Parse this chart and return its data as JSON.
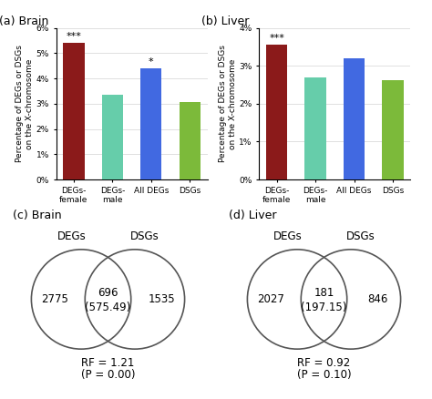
{
  "brain_bar": {
    "categories": [
      "DEGs-\nfemale",
      "DEGs-\nmale",
      "All DEGs",
      "DSGs"
    ],
    "values": [
      5.4,
      3.35,
      4.4,
      3.05
    ],
    "colors": [
      "#8B1A1A",
      "#66CDAA",
      "#4169E1",
      "#7CBA3A"
    ],
    "annotations": [
      "***",
      "",
      "*",
      ""
    ],
    "ylim": [
      0,
      6
    ],
    "yticks": [
      0,
      1,
      2,
      3,
      4,
      5,
      6
    ],
    "yticklabels": [
      "0%",
      "1%",
      "2%",
      "3%",
      "4%",
      "5%",
      "6%"
    ]
  },
  "liver_bar": {
    "categories": [
      "DEGs-\nfemale",
      "DEGs-\nmale",
      "All DEGs",
      "DSGs"
    ],
    "values": [
      3.55,
      2.7,
      3.2,
      2.62
    ],
    "colors": [
      "#8B1A1A",
      "#66CDAA",
      "#4169E1",
      "#7CBA3A"
    ],
    "annotations": [
      "***",
      "",
      "",
      ""
    ],
    "ylim": [
      0,
      4
    ],
    "yticks": [
      0,
      1,
      2,
      3,
      4
    ],
    "yticklabels": [
      "0%",
      "1%",
      "2%",
      "3%",
      "4%"
    ]
  },
  "brain_venn": {
    "left_label": "DEGs",
    "right_label": "DSGs",
    "left_only": "2775",
    "overlap": "696",
    "overlap_sub": "(575.49)",
    "right_only": "1535",
    "rf_text": "RF = 1.21",
    "p_text": "(P = 0.00)"
  },
  "liver_venn": {
    "left_label": "DEGs",
    "right_label": "DSGs",
    "left_only": "2027",
    "overlap": "181",
    "overlap_sub": "(197.15)",
    "right_only": "846",
    "rf_text": "RF = 0.92",
    "p_text": "(P = 0.10)"
  },
  "panel_labels": [
    "(a) Brain",
    "(b) Liver",
    "(c) Brain",
    "(d) Liver"
  ],
  "ylabel": "Percentage of DEGs or DSGs\non the X-chromosome",
  "bar_width": 0.55,
  "annotation_fontsize": 8,
  "axis_fontsize": 6.5,
  "tick_fontsize": 6.5,
  "venn_fontsize": 8.5,
  "panel_label_fontsize": 9
}
